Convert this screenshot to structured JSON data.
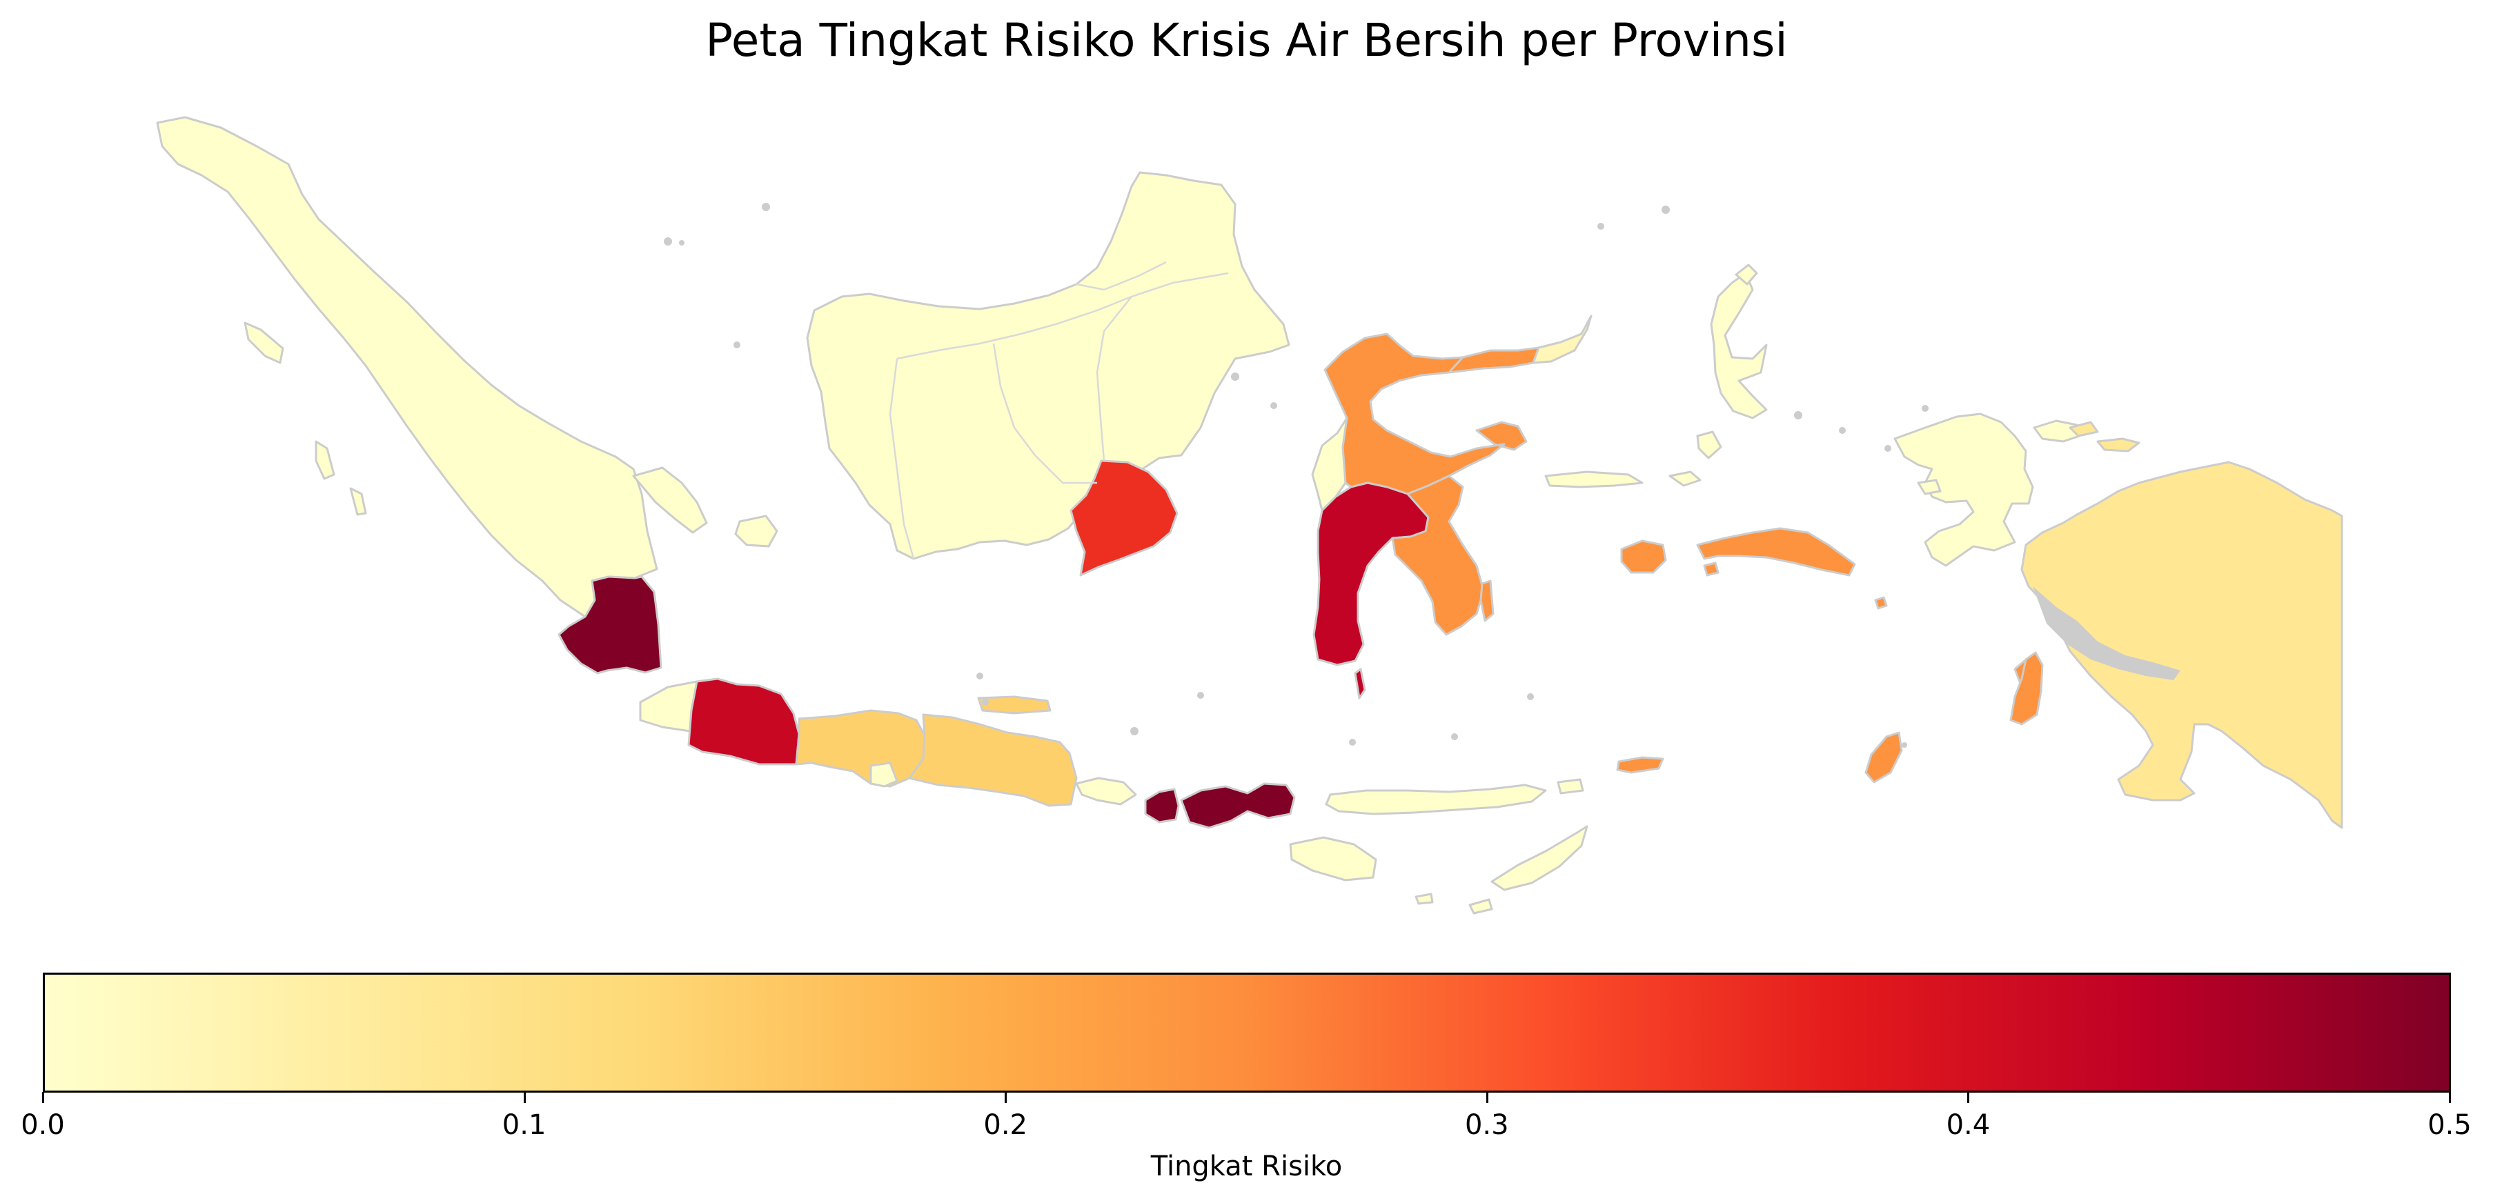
{
  "title": "Peta Tingkat Risiko Krisis Air Bersih per Provinsi",
  "colorbar": {
    "label": "Tingkat Risiko",
    "colormap": "YlOrRd",
    "range": [
      0.0,
      0.5
    ],
    "ticks": [
      "0.0",
      "0.1",
      "0.2",
      "0.3",
      "0.4",
      "0.5"
    ],
    "stops": [
      "#ffffcc",
      "#ffeda0",
      "#fed976",
      "#feb24c",
      "#fd8d3c",
      "#fc4e2a",
      "#e31a1c",
      "#bd0026",
      "#800026"
    ]
  },
  "provinces": [
    {
      "region": "Sumatera (semua provinsi lain)",
      "risk": 0.0
    },
    {
      "region": "Lampung",
      "risk": 0.5
    },
    {
      "region": "Banten",
      "risk": 0.0
    },
    {
      "region": "Jawa Barat",
      "risk": 0.42
    },
    {
      "region": "Jawa Tengah",
      "risk": 0.14
    },
    {
      "region": "DI Yogyakarta",
      "risk": 0.0
    },
    {
      "region": "Jawa Timur",
      "risk": 0.14
    },
    {
      "region": "Bali",
      "risk": 0.0
    },
    {
      "region": "Nusa Tenggara Barat",
      "risk": 0.5
    },
    {
      "region": "Nusa Tenggara Timur",
      "risk": 0.0
    },
    {
      "region": "Kalimantan (semua provinsi lain)",
      "risk": 0.0
    },
    {
      "region": "Kalimantan Selatan",
      "risk": 0.35
    },
    {
      "region": "Sulawesi Barat",
      "risk": 0.0
    },
    {
      "region": "Sulawesi Tengah",
      "risk": 0.24
    },
    {
      "region": "Gorontalo",
      "risk": 0.24
    },
    {
      "region": "Sulawesi Utara",
      "risk": 0.03
    },
    {
      "region": "Sulawesi Selatan",
      "risk": 0.43
    },
    {
      "region": "Sulawesi Tenggara",
      "risk": 0.24
    },
    {
      "region": "Maluku",
      "risk": 0.24
    },
    {
      "region": "Maluku Utara",
      "risk": 0.0
    },
    {
      "region": "Papua Barat",
      "risk": 0.0
    },
    {
      "region": "Papua",
      "risk": 0.08
    }
  ]
}
